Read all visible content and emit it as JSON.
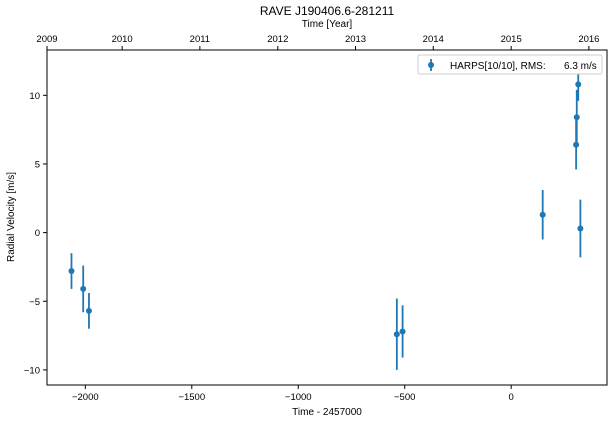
{
  "chart_data": {
    "type": "scatter",
    "title": "RAVE J190406.6-281211",
    "xlabel": "Time - 2457000",
    "ylabel": "Radial Velocity [m/s]",
    "top_xlabel": "Time [Year]",
    "xlim": [
      -2180,
      450
    ],
    "ylim": [
      -11.1,
      13.3
    ],
    "xticks": [
      -2000,
      -1500,
      -1000,
      -500,
      0
    ],
    "xtick_labels": [
      "−2000",
      "−1500",
      "−1000",
      "−500",
      "0"
    ],
    "yticks": [
      -10,
      -5,
      0,
      5,
      10
    ],
    "ytick_labels": [
      "−10",
      "−5",
      "0",
      "5",
      "10"
    ],
    "top_ticks": [
      {
        "label": "2009",
        "x": -2192
      },
      {
        "label": "2010",
        "x": -1827
      },
      {
        "label": "2011",
        "x": -1462
      },
      {
        "label": "2012",
        "x": -1096
      },
      {
        "label": "2013",
        "x": -731
      },
      {
        "label": "2014",
        "x": -366
      },
      {
        "label": "2015",
        "x": 0
      },
      {
        "label": "2016",
        "x": 365
      }
    ],
    "legend": {
      "label": "HARPS[10/10], RMS:",
      "rms": "6.3 m/s",
      "placement": "top-right"
    },
    "grid": false,
    "series": [
      {
        "name": "HARPS[10/10]",
        "color": "#1f77b4",
        "points": [
          {
            "x": -2065,
            "y": -2.8,
            "err": 1.3
          },
          {
            "x": -2010,
            "y": -4.1,
            "err": 1.7
          },
          {
            "x": -1983,
            "y": -5.7,
            "err": 1.3
          },
          {
            "x": -537,
            "y": -7.4,
            "err": 2.6
          },
          {
            "x": -510,
            "y": -7.2,
            "err": 1.9
          },
          {
            "x": 148,
            "y": 1.3,
            "err": 1.8
          },
          {
            "x": 305,
            "y": 6.4,
            "err": 1.8
          },
          {
            "x": 308,
            "y": 8.4,
            "err": 2.0
          },
          {
            "x": 315,
            "y": 10.8,
            "err": 1.2
          },
          {
            "x": 325,
            "y": 0.3,
            "err": 2.1
          }
        ]
      }
    ]
  }
}
